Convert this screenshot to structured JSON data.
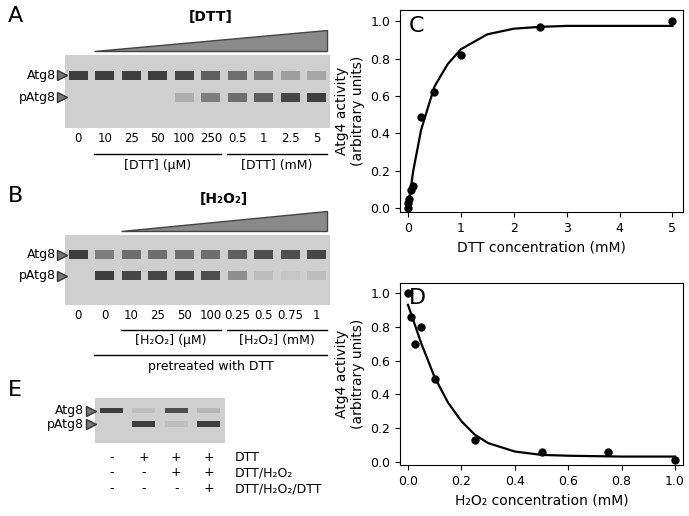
{
  "chart_data": [
    {
      "type": "line",
      "panel": "C",
      "x_label": "DTT concentration (mM)",
      "y_label": "Atg4 activity\n(arbitrary units)",
      "xlim": [
        -0.15,
        5.2
      ],
      "ylim": [
        -0.02,
        1.06
      ],
      "xticks": [
        0,
        1,
        2,
        3,
        4,
        5
      ],
      "yticks": [
        {
          "value": 0.0,
          "label": "0.0"
        },
        {
          "value": 0.2,
          "label": "0.2"
        },
        {
          "value": 0.4,
          "label": "0.4"
        },
        {
          "value": 0.6,
          "label": "0.6"
        },
        {
          "value": 0.8,
          "label": "0.8"
        },
        {
          "value": 1.0,
          "label": "1.0"
        }
      ],
      "series": [
        {
          "type": "scatter",
          "color": "#000000",
          "marker": "circle",
          "x": [
            0,
            0.01,
            0.025,
            0.05,
            0.1,
            0.25,
            0.5,
            1,
            2.5,
            5
          ],
          "values": [
            0.0,
            0.03,
            0.05,
            0.1,
            0.12,
            0.49,
            0.62,
            0.82,
            0.97,
            1.0
          ]
        },
        {
          "type": "line",
          "color": "#000000",
          "line_style": "solid",
          "x": [
            0,
            0.1,
            0.25,
            0.5,
            0.75,
            1,
            1.5,
            2,
            2.5,
            3,
            4,
            5
          ],
          "values": [
            0.0,
            0.2,
            0.42,
            0.65,
            0.77,
            0.85,
            0.93,
            0.96,
            0.97,
            0.975,
            0.975,
            0.975
          ]
        }
      ]
    },
    {
      "type": "line",
      "panel": "D",
      "x_label": "H₂O₂ concentration (mM)",
      "y_label": "Atg4 activity\n(arbitrary units)",
      "xlim": [
        -0.03,
        1.03
      ],
      "ylim": [
        -0.02,
        1.06
      ],
      "xticks": [
        {
          "value": 0.0,
          "label": "0.0"
        },
        {
          "value": 0.2,
          "label": "0.2"
        },
        {
          "value": 0.4,
          "label": "0.4"
        },
        {
          "value": 0.6,
          "label": "0.6"
        },
        {
          "value": 0.8,
          "label": "0.8"
        },
        {
          "value": 1.0,
          "label": "1.0"
        }
      ],
      "yticks": [
        {
          "value": 0.0,
          "label": "0.0"
        },
        {
          "value": 0.2,
          "label": "0.2"
        },
        {
          "value": 0.4,
          "label": "0.4"
        },
        {
          "value": 0.6,
          "label": "0.6"
        },
        {
          "value": 0.8,
          "label": "0.8"
        },
        {
          "value": 1.0,
          "label": "1.0"
        }
      ],
      "series": [
        {
          "type": "scatter",
          "color": "#000000",
          "marker": "circle",
          "x": [
            0,
            0.01,
            0.025,
            0.05,
            0.1,
            0.25,
            0.5,
            0.75,
            1.0
          ],
          "values": [
            1.0,
            0.86,
            0.7,
            0.8,
            0.49,
            0.13,
            0.06,
            0.06,
            0.01
          ]
        },
        {
          "type": "line",
          "color": "#000000",
          "line_style": "solid",
          "x": [
            0,
            0.05,
            0.1,
            0.15,
            0.2,
            0.25,
            0.3,
            0.4,
            0.5,
            0.6,
            0.8,
            1.0
          ],
          "values": [
            0.93,
            0.7,
            0.5,
            0.35,
            0.24,
            0.16,
            0.11,
            0.06,
            0.04,
            0.035,
            0.03,
            0.03
          ]
        }
      ]
    }
  ],
  "blots": [
    {
      "panel": "A",
      "title": "[DTT]",
      "wedge_lanes": [
        1,
        9
      ],
      "lanes": [
        "0",
        "10",
        "25",
        "50",
        "100",
        "250",
        "0.5",
        "1",
        "2.5",
        "5"
      ],
      "bands": [
        {
          "name": "Atg8",
          "intensity": [
            0.9,
            0.9,
            0.9,
            0.9,
            0.85,
            0.7,
            0.6,
            0.5,
            0.3,
            0.25
          ]
        },
        {
          "name": "pAtg8",
          "intensity": [
            0.0,
            0.0,
            0.0,
            0.0,
            0.2,
            0.5,
            0.6,
            0.7,
            0.85,
            0.9
          ]
        }
      ],
      "groups": [
        {
          "label": "[DTT] (µM)",
          "lanes": [
            1,
            5
          ]
        },
        {
          "label": "[DTT] (mM)",
          "lanes": [
            6,
            9
          ]
        }
      ]
    },
    {
      "panel": "B",
      "title": "[H₂O₂]",
      "wedge_lanes": [
        2,
        9
      ],
      "lanes": [
        "0",
        "0",
        "10",
        "25",
        "50",
        "100",
        "0.25",
        "0.5",
        "0.75",
        "1"
      ],
      "bands": [
        {
          "name": "Atg8",
          "intensity": [
            0.9,
            0.5,
            0.6,
            0.6,
            0.6,
            0.6,
            0.7,
            0.8,
            0.8,
            0.85
          ]
        },
        {
          "name": "pAtg8",
          "intensity": [
            0.0,
            0.9,
            0.85,
            0.85,
            0.85,
            0.8,
            0.4,
            0.1,
            0.05,
            0.1
          ]
        }
      ],
      "groups": [
        {
          "label": "[H₂O₂] (µM)",
          "lanes": [
            2,
            5
          ]
        },
        {
          "label": "[H₂O₂] (mM)",
          "lanes": [
            6,
            9
          ]
        },
        {
          "label": "pretreated with DTT",
          "lanes": [
            1,
            9
          ]
        }
      ]
    },
    {
      "panel": "E",
      "bands": [
        {
          "name": "Atg8",
          "intensity": [
            0.9,
            0.1,
            0.8,
            0.15
          ]
        },
        {
          "name": "pAtg8",
          "intensity": [
            0.0,
            0.9,
            0.1,
            0.9
          ]
        }
      ],
      "conditions": [
        {
          "name": "DTT",
          "signs": [
            "-",
            "+",
            "+",
            "+"
          ]
        },
        {
          "name": "DTT/H₂O₂",
          "signs": [
            "-",
            "-",
            "+",
            "+"
          ]
        },
        {
          "name": "DTT/H₂O₂/DTT",
          "signs": [
            "-",
            "-",
            "-",
            "+"
          ]
        }
      ]
    }
  ]
}
